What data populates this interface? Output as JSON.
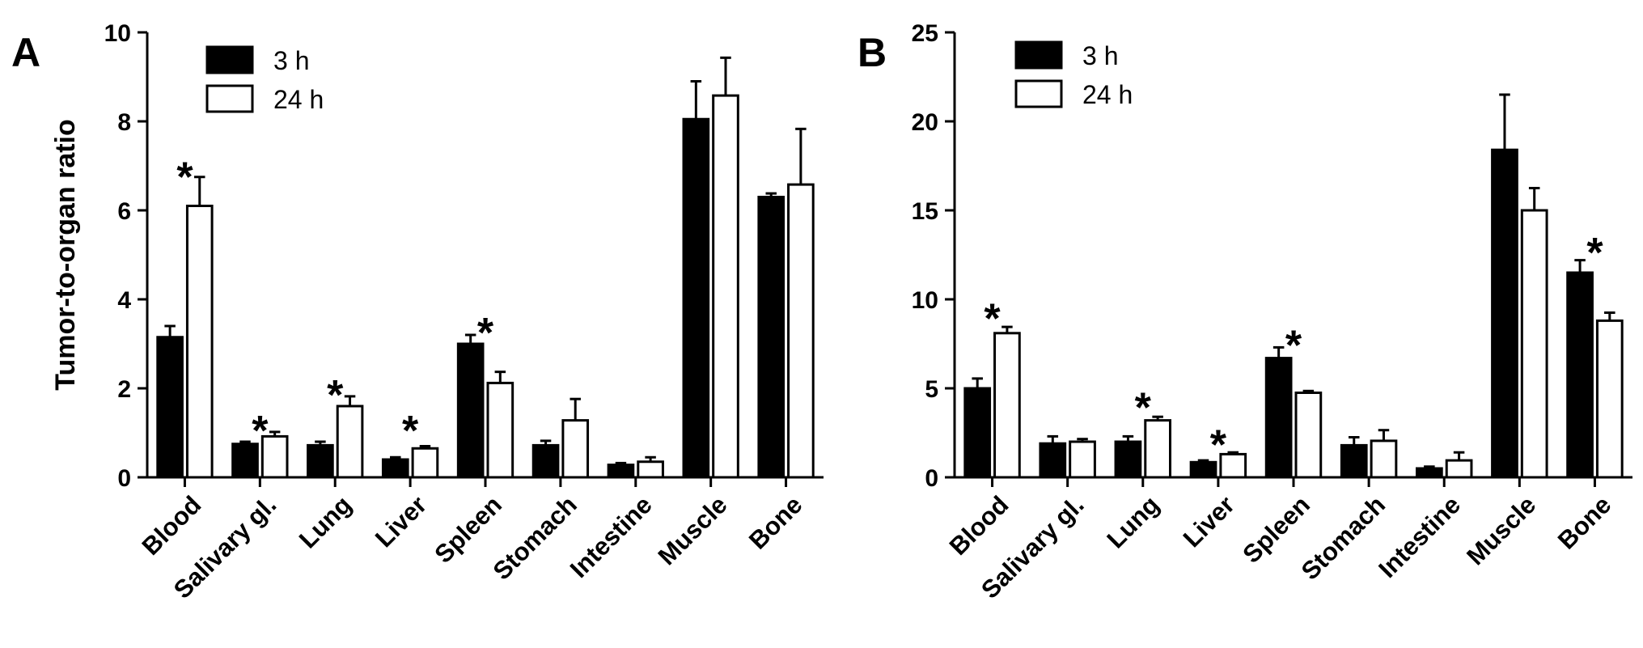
{
  "colors": {
    "bar_3h": "#000000",
    "bar_24h": "#ffffff",
    "axis": "#000000"
  },
  "chart_data": [
    {
      "type": "bar",
      "panel_label": "A",
      "ylabel": "Tumor-to-organ ratio",
      "xlabel": "",
      "ylim": [
        0,
        10
      ],
      "yticks": [
        "0",
        "2",
        "4",
        "6",
        "8",
        "10"
      ],
      "categories": [
        "Blood",
        "Salivary gl.",
        "Lung",
        "Liver",
        "Spleen",
        "Stomach",
        "Intestine",
        "Muscle",
        "Bone"
      ],
      "legend_position": "top-left",
      "series": [
        {
          "name": "3 h",
          "values": [
            3.15,
            0.75,
            0.72,
            0.4,
            3.0,
            0.72,
            0.28,
            8.05,
            6.3
          ],
          "errors": [
            0.25,
            0.05,
            0.08,
            0.05,
            0.2,
            0.1,
            0.04,
            0.85,
            0.08
          ]
        },
        {
          "name": "24 h",
          "values": [
            6.1,
            0.92,
            1.6,
            0.65,
            2.12,
            1.28,
            0.35,
            8.58,
            6.58
          ],
          "errors": [
            0.65,
            0.1,
            0.22,
            0.05,
            0.25,
            0.48,
            0.1,
            0.85,
            1.25
          ]
        }
      ],
      "annotations": [
        {
          "text": "*",
          "category": "Blood",
          "y": 6.9
        },
        {
          "text": "*",
          "category": "Salivary gl.",
          "y": 1.2
        },
        {
          "text": "*",
          "category": "Lung",
          "y": 2.0
        },
        {
          "text": "*",
          "category": "Liver",
          "y": 1.2
        },
        {
          "text": "*",
          "category": "Spleen",
          "y": 3.4
        }
      ]
    },
    {
      "type": "bar",
      "panel_label": "B",
      "ylabel": "",
      "xlabel": "",
      "ylim": [
        0,
        25
      ],
      "yticks": [
        "0",
        "5",
        "10",
        "15",
        "20",
        "25"
      ],
      "categories": [
        "Blood",
        "Salivary gl.",
        "Lung",
        "Liver",
        "Spleen",
        "Stomach",
        "Intestine",
        "Muscle",
        "Bone"
      ],
      "legend_position": "top-left",
      "series": [
        {
          "name": "3 h",
          "values": [
            5.0,
            1.9,
            2.0,
            0.85,
            6.7,
            1.8,
            0.5,
            18.4,
            11.5
          ],
          "errors": [
            0.55,
            0.4,
            0.3,
            0.1,
            0.6,
            0.45,
            0.1,
            3.1,
            0.7
          ]
        },
        {
          "name": "24 h",
          "values": [
            8.1,
            2.0,
            3.2,
            1.3,
            4.75,
            2.05,
            0.95,
            15.0,
            8.8
          ],
          "errors": [
            0.35,
            0.15,
            0.2,
            0.1,
            0.1,
            0.6,
            0.45,
            1.25,
            0.45
          ]
        }
      ],
      "annotations": [
        {
          "text": "*",
          "category": "Blood",
          "y": 9.3
        },
        {
          "text": "*",
          "category": "Lung",
          "y": 4.3
        },
        {
          "text": "*",
          "category": "Liver",
          "y": 2.2
        },
        {
          "text": "*",
          "category": "Spleen",
          "y": 7.8
        },
        {
          "text": "*",
          "category": "Bone",
          "y": 13.0
        }
      ]
    }
  ]
}
